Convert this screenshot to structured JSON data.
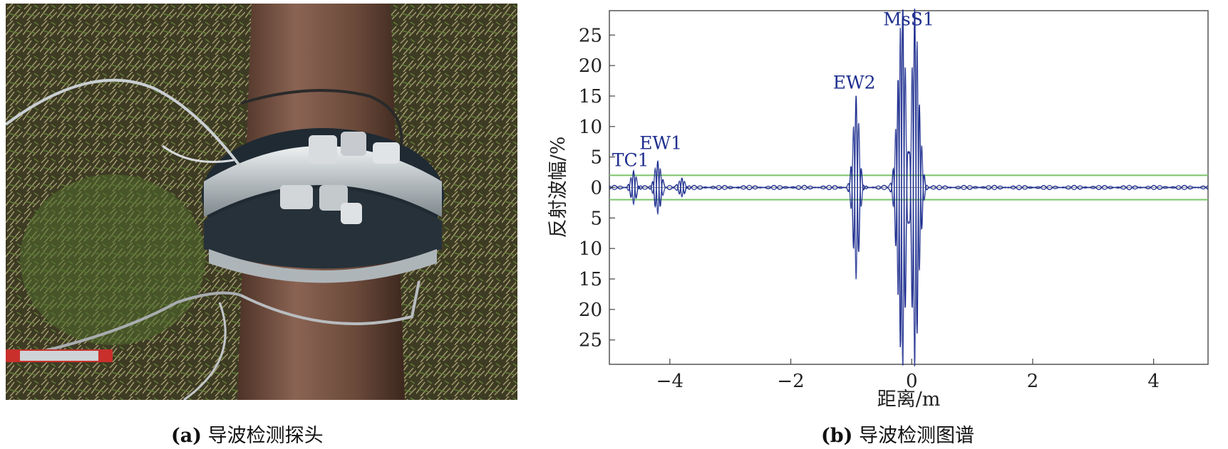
{
  "panel_a": {
    "caption_tag": "(a)",
    "caption_text": "导波检测探头",
    "photo_subject": "guided-wave probe ring clamped on pipe"
  },
  "panel_b": {
    "caption_tag": "(b)",
    "caption_text": "导波检测图谱"
  },
  "colors": {
    "trace": "#1f2f8f",
    "threshold": "#7cc46a",
    "grass_dark": "#3d3a22",
    "pipe": "#6b4a3a",
    "clamp": "#cfd3d6"
  },
  "chart_data": {
    "type": "line",
    "xlabel": "距离/m",
    "ylabel": "反射波幅/%",
    "xlim": [
      -5,
      4.9
    ],
    "ylim": [
      -29,
      29
    ],
    "x_ticks": [
      -4,
      -2,
      0,
      2,
      4
    ],
    "x_tick_labels": [
      "−4",
      "−2",
      "0",
      "2",
      "4"
    ],
    "y_ticks": [
      25,
      20,
      15,
      10,
      5,
      0,
      -5,
      -10,
      -15,
      -20,
      -25
    ],
    "y_tick_labels": [
      "25",
      "20",
      "15",
      "10",
      "5",
      "0",
      "5",
      "10",
      "15",
      "20",
      "25"
    ],
    "threshold_lines": [
      2,
      -2
    ],
    "grid": false,
    "annotations": [
      {
        "label": "TC1",
        "x": -4.65,
        "y": 3.5
      },
      {
        "label": "EW1",
        "x": -4.15,
        "y": 6.3
      },
      {
        "label": "EW2",
        "x": -0.95,
        "y": 16.2
      },
      {
        "label": "MsS1",
        "x": -0.05,
        "y": 26.6
      }
    ],
    "peaks": [
      {
        "x": -4.6,
        "amplitude": 2.5
      },
      {
        "x": -4.2,
        "amplitude": 4.5
      },
      {
        "x": -3.8,
        "amplitude": 1.5
      },
      {
        "x": -0.92,
        "amplitude": 15
      },
      {
        "x": -0.22,
        "amplitude": 14
      },
      {
        "x": -0.15,
        "amplitude": 29
      },
      {
        "x": 0.05,
        "amplitude": 29
      },
      {
        "x": 0.12,
        "amplitude": 9.5
      }
    ]
  }
}
